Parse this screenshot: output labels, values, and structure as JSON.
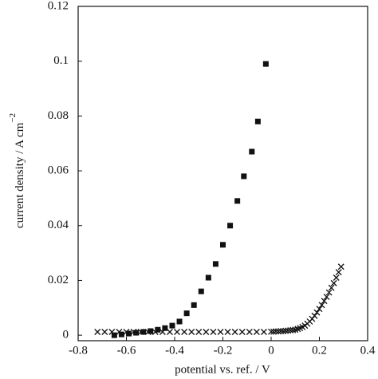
{
  "chart_data": {
    "type": "scatter",
    "x_label": "potential vs. ref. / V",
    "y_label": "current density / A cm",
    "y_label_exponent": "−2",
    "xlim": [
      -0.8,
      0.4
    ],
    "xticks": [
      -0.8,
      -0.6,
      -0.4,
      -0.2,
      0,
      0.2,
      0.4
    ],
    "ylim": [
      -0.002,
      0.12
    ],
    "yticks": [
      0,
      0.02,
      0.04,
      0.06,
      0.08,
      0.1,
      0.12
    ],
    "series": [
      {
        "marker": "square",
        "color": "#111111",
        "x": [
          -0.65,
          -0.62,
          -0.59,
          -0.56,
          -0.53,
          -0.5,
          -0.47,
          -0.44,
          -0.41,
          -0.38,
          -0.35,
          -0.32,
          -0.29,
          -0.26,
          -0.23,
          -0.2,
          -0.17,
          -0.14,
          -0.113,
          -0.08,
          -0.055,
          -0.022
        ],
        "values": [
          0,
          0.0003,
          0.0006,
          0.0009,
          0.0012,
          0.0015,
          0.002,
          0.0026,
          0.0035,
          0.005,
          0.008,
          0.011,
          0.016,
          0.021,
          0.026,
          0.033,
          0.04,
          0.049,
          0.058,
          0.067,
          0.078,
          0.099
        ]
      },
      {
        "marker": "cross",
        "color": "#111111",
        "x": [
          -0.72,
          -0.69,
          -0.66,
          -0.63,
          -0.6,
          -0.57,
          -0.54,
          -0.51,
          -0.48,
          -0.45,
          -0.42,
          -0.39,
          -0.36,
          -0.33,
          -0.3,
          -0.27,
          -0.24,
          -0.21,
          -0.18,
          -0.15,
          -0.12,
          -0.09,
          -0.06,
          -0.03,
          0,
          0.01,
          0.02,
          0.03,
          0.04,
          0.05,
          0.06,
          0.07,
          0.08,
          0.09,
          0.1,
          0.11,
          0.12,
          0.13,
          0.14,
          0.15,
          0.16,
          0.17,
          0.18,
          0.19,
          0.2,
          0.21,
          0.22,
          0.23,
          0.24,
          0.25,
          0.26,
          0.27,
          0.28,
          0.29
        ],
        "values": [
          0.0012,
          0.0012,
          0.0012,
          0.0012,
          0.0012,
          0.0012,
          0.0012,
          0.0012,
          0.0012,
          0.0012,
          0.0012,
          0.0012,
          0.0012,
          0.0012,
          0.0012,
          0.0012,
          0.0012,
          0.0012,
          0.0012,
          0.0012,
          0.0012,
          0.0012,
          0.0012,
          0.0012,
          0.0013,
          0.0013,
          0.0014,
          0.0014,
          0.0015,
          0.0015,
          0.0016,
          0.0017,
          0.0018,
          0.0019,
          0.002,
          0.0023,
          0.0026,
          0.003,
          0.0035,
          0.0042,
          0.005,
          0.006,
          0.0071,
          0.0083,
          0.0096,
          0.011,
          0.0125,
          0.014,
          0.0156,
          0.0173,
          0.019,
          0.021,
          0.023,
          0.025
        ]
      }
    ]
  }
}
